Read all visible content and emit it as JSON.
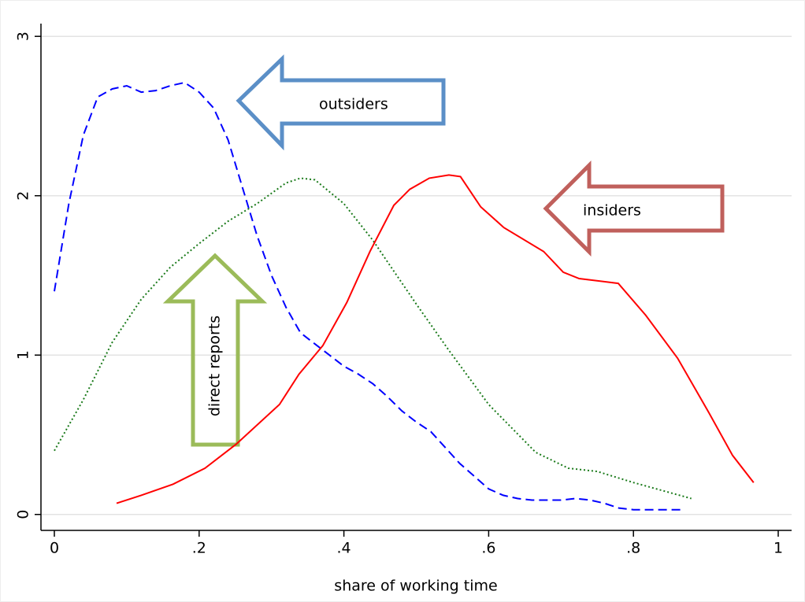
{
  "chart_data": {
    "type": "line",
    "xlabel": "share of working time",
    "xlim": [
      -0.0185,
      1.0185
    ],
    "ylim": [
      -0.1,
      3.08
    ],
    "xticks": [
      0,
      {
        "value": 0.2,
        "label": ".2"
      },
      {
        "value": 0.4,
        "label": ".4"
      },
      {
        "value": 0.6,
        "label": ".6"
      },
      {
        "value": 0.8,
        "label": ".8"
      },
      1
    ],
    "yticks": [
      0,
      1,
      2,
      3
    ],
    "grid": true,
    "series": [
      {
        "color": "#0000ff",
        "dash": "dashed",
        "x": [
          0,
          0.02,
          0.04,
          0.06,
          0.08,
          0.1,
          0.12,
          0.14,
          0.16,
          0.18,
          0.2,
          0.22,
          0.24,
          0.26,
          0.28,
          0.3,
          0.32,
          0.34,
          0.36,
          0.38,
          0.4,
          0.42,
          0.44,
          0.46,
          0.48,
          0.5,
          0.52,
          0.54,
          0.56,
          0.58,
          0.6,
          0.62,
          0.64,
          0.66,
          0.68,
          0.7,
          0.72,
          0.74,
          0.76,
          0.78,
          0.8,
          0.82,
          0.84,
          0.868
        ],
        "values": [
          1.4,
          1.95,
          2.38,
          2.62,
          2.67,
          2.69,
          2.65,
          2.66,
          2.69,
          2.71,
          2.65,
          2.55,
          2.35,
          2.05,
          1.75,
          1.5,
          1.3,
          1.14,
          1.07,
          1.0,
          0.93,
          0.88,
          0.82,
          0.74,
          0.65,
          0.58,
          0.52,
          0.42,
          0.32,
          0.24,
          0.16,
          0.12,
          0.1,
          0.09,
          0.09,
          0.09,
          0.1,
          0.09,
          0.07,
          0.04,
          0.03,
          0.03,
          0.03,
          0.03
        ]
      },
      {
        "color": "#1a7a1a",
        "dash": "dotted",
        "x": [
          0,
          0.04,
          0.08,
          0.12,
          0.16,
          0.2,
          0.24,
          0.28,
          0.32,
          0.34,
          0.36,
          0.4,
          0.44,
          0.47,
          0.5,
          0.545,
          0.6,
          0.665,
          0.71,
          0.75,
          0.8,
          0.84,
          0.88
        ],
        "values": [
          0.4,
          0.72,
          1.08,
          1.35,
          1.55,
          1.7,
          1.84,
          1.95,
          2.08,
          2.11,
          2.1,
          1.95,
          1.72,
          1.52,
          1.32,
          1.03,
          0.69,
          0.39,
          0.29,
          0.27,
          0.2,
          0.15,
          0.1
        ]
      },
      {
        "color": "#ff0000",
        "dash": "solid",
        "x": [
          0.086,
          0.12,
          0.164,
          0.208,
          0.251,
          0.311,
          0.338,
          0.371,
          0.404,
          0.436,
          0.469,
          0.491,
          0.518,
          0.545,
          0.561,
          0.589,
          0.621,
          0.676,
          0.703,
          0.725,
          0.779,
          0.817,
          0.861,
          0.904,
          0.937,
          0.966
        ],
        "values": [
          0.07,
          0.12,
          0.19,
          0.29,
          0.44,
          0.69,
          0.88,
          1.06,
          1.33,
          1.65,
          1.94,
          2.04,
          2.11,
          2.13,
          2.12,
          1.93,
          1.8,
          1.65,
          1.52,
          1.48,
          1.45,
          1.25,
          0.98,
          0.64,
          0.37,
          0.2
        ]
      }
    ],
    "annotations": [
      {
        "text": "outsiders",
        "color": "#1f3b5a"
      },
      {
        "text": "insiders",
        "color": "#ff0000"
      },
      {
        "text": "direct reports",
        "color": "#6b7a2a"
      }
    ]
  }
}
